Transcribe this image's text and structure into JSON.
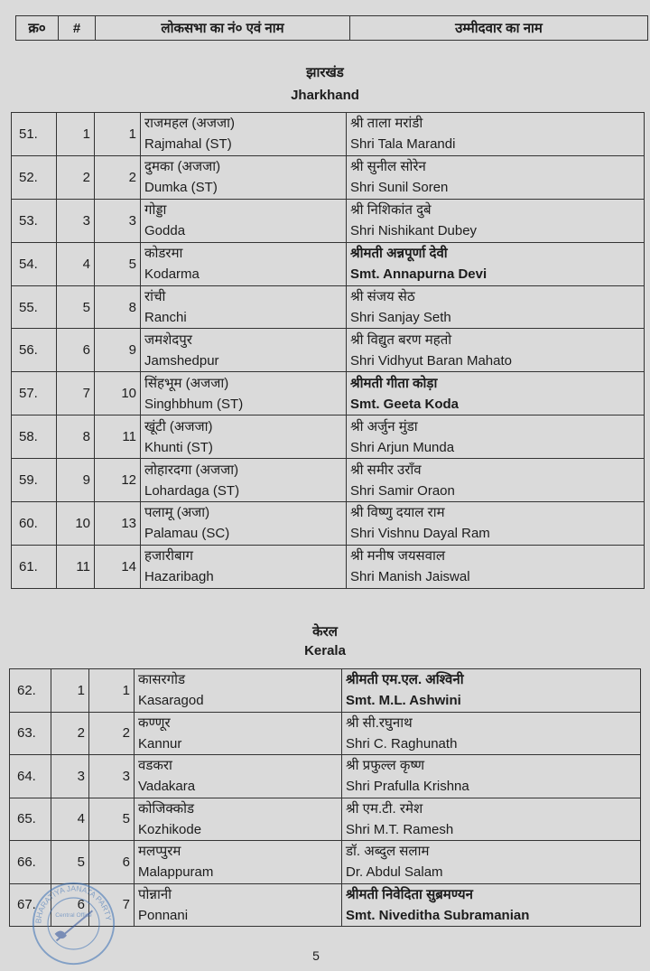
{
  "header": {
    "col_sn": "क्र०",
    "col_hash": "#",
    "col_constituency": "लोकसभा का नं० एवं नाम",
    "col_candidate": "उम्मीदवार का नाम"
  },
  "sections": [
    {
      "title_hi": "झारखंड",
      "title_en": "Jharkhand",
      "rows": [
        {
          "sn": "51.",
          "n": "1",
          "pc": "1",
          "hi": "राजमहल (अजजा)",
          "en": "Rajmahal (ST)",
          "cand_hi": "श्री ताला मरांडी",
          "cand_en": "Shri Tala Marandi",
          "bold": false
        },
        {
          "sn": "52.",
          "n": "2",
          "pc": "2",
          "hi": "दुमका (अजजा)",
          "en": "Dumka (ST)",
          "cand_hi": "श्री सुनील सोरेन",
          "cand_en": "Shri Sunil Soren",
          "bold": false
        },
        {
          "sn": "53.",
          "n": "3",
          "pc": "3",
          "hi": "गोड्डा",
          "en": "Godda",
          "cand_hi": "श्री निशिकांत दुबे",
          "cand_en": "Shri Nishikant Dubey",
          "bold": false
        },
        {
          "sn": "54.",
          "n": "4",
          "pc": "5",
          "hi": "कोडरमा",
          "en": "Kodarma",
          "cand_hi": "श्रीमती अन्नपूर्णा देवी",
          "cand_en": "Smt. Annapurna Devi",
          "bold": true
        },
        {
          "sn": "55.",
          "n": "5",
          "pc": "8",
          "hi": "रांची",
          "en": "Ranchi",
          "cand_hi": "श्री संजय सेठ",
          "cand_en": "Shri Sanjay Seth",
          "bold": false
        },
        {
          "sn": "56.",
          "n": "6",
          "pc": "9",
          "hi": "जमशेदपुर",
          "en": "Jamshedpur",
          "cand_hi": "श्री विद्युत बरण महतो",
          "cand_en": "Shri Vidhyut Baran Mahato",
          "bold": false
        },
        {
          "sn": "57.",
          "n": "7",
          "pc": "10",
          "hi": "सिंहभूम (अजजा)",
          "en": "Singhbhum (ST)",
          "cand_hi": "श्रीमती गीता कोड़ा",
          "cand_en": "Smt. Geeta Koda",
          "bold": true
        },
        {
          "sn": "58.",
          "n": "8",
          "pc": "11",
          "hi": "खूंटी (अजजा)",
          "en": "Khunti (ST)",
          "cand_hi": "श्री अर्जुन मुंडा",
          "cand_en": "Shri Arjun Munda",
          "bold": false
        },
        {
          "sn": "59.",
          "n": "9",
          "pc": "12",
          "hi": "लोहारदगा (अजजा)",
          "en": "Lohardaga (ST)",
          "cand_hi": "श्री समीर उराँव",
          "cand_en": "Shri Samir Oraon",
          "bold": false
        },
        {
          "sn": "60.",
          "n": "10",
          "pc": "13",
          "hi": "पलामू (अजा)",
          "en": "Palamau (SC)",
          "cand_hi": "श्री विष्णु दयाल राम",
          "cand_en": "Shri Vishnu Dayal Ram",
          "bold": false
        },
        {
          "sn": "61.",
          "n": "11",
          "pc": "14",
          "hi": "हजारीबाग",
          "en": "Hazaribagh",
          "cand_hi": "श्री मनीष जयसवाल",
          "cand_en": "Shri Manish Jaiswal",
          "bold": false
        }
      ]
    },
    {
      "title_hi": "केरल",
      "title_en": "Kerala",
      "rows": [
        {
          "sn": "62.",
          "n": "1",
          "pc": "1",
          "hi": "कासरगोड",
          "en": "Kasaragod",
          "cand_hi": "श्रीमती एम.एल. अश्विनी",
          "cand_en": "Smt. M.L. Ashwini",
          "bold": true
        },
        {
          "sn": "63.",
          "n": "2",
          "pc": "2",
          "hi": "कण्णूर",
          "en": "Kannur",
          "cand_hi": "श्री सी.रघुनाथ",
          "cand_en": "Shri C. Raghunath",
          "bold": false
        },
        {
          "sn": "64.",
          "n": "3",
          "pc": "3",
          "hi": "वडकरा",
          "en": "Vadakara",
          "cand_hi": "श्री प्रफुल्ल कृष्ण",
          "cand_en": "Shri Prafulla Krishna",
          "bold": false
        },
        {
          "sn": "65.",
          "n": "4",
          "pc": "5",
          "hi": "कोजिक्कोड",
          "en": "Kozhikode",
          "cand_hi": "श्री एम.टी. रमेश",
          "cand_en": "Shri M.T. Ramesh",
          "bold": false
        },
        {
          "sn": "66.",
          "n": "5",
          "pc": "6",
          "hi": "मलप्पुरम",
          "en": "Malappuram",
          "cand_hi": "डॉ. अब्दुल सलाम",
          "cand_en": "Dr. Abdul Salam",
          "bold": false
        },
        {
          "sn": "67.",
          "n": "6",
          "pc": "7",
          "hi": "पोन्नानी",
          "en": "Ponnani",
          "cand_hi": "श्रीमती निवेदिता सुब्रमण्यन",
          "cand_en": "Smt. Niveditha Subramanian",
          "bold": true
        }
      ]
    }
  ],
  "stamp": {
    "text": "BHARATIYA JANATA PARTY",
    "line1": "Central Office",
    "color": "#3a6fb5"
  },
  "page_number": "5"
}
